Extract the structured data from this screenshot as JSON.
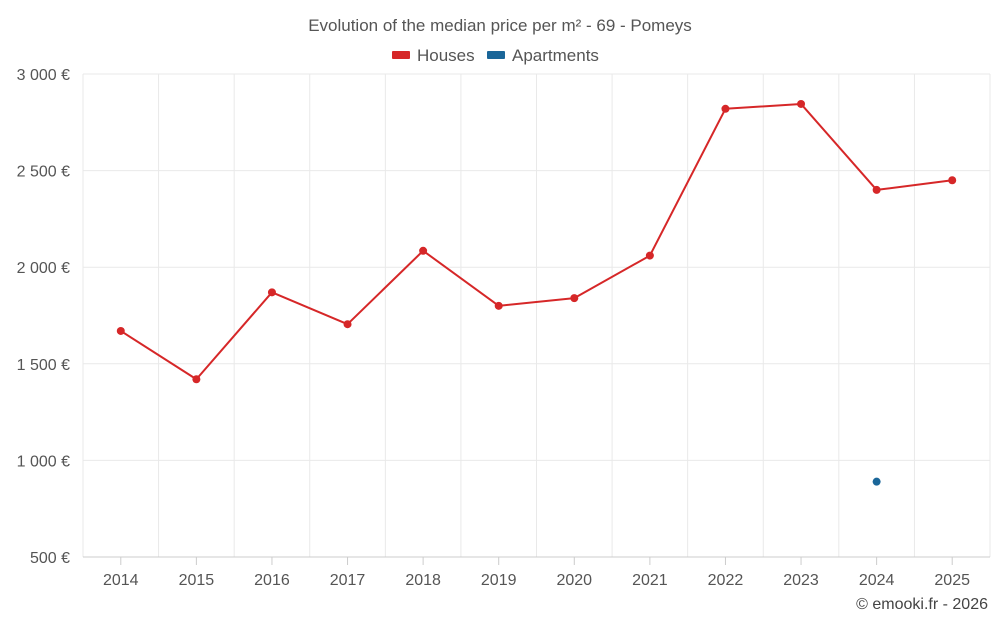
{
  "chart_data": {
    "type": "line",
    "title": "Evolution of the median price per m² - 69 - Pomeys",
    "xlabel": "",
    "ylabel": "",
    "categories": [
      "2014",
      "2015",
      "2016",
      "2017",
      "2018",
      "2019",
      "2020",
      "2021",
      "2022",
      "2023",
      "2024",
      "2025"
    ],
    "series": [
      {
        "name": "Houses",
        "color": "#d62728",
        "values": [
          1670,
          1420,
          1870,
          1705,
          2085,
          1800,
          1840,
          2060,
          2820,
          2845,
          2400,
          2450
        ]
      },
      {
        "name": "Apartments",
        "color": "#1a6699",
        "values": [
          null,
          null,
          null,
          null,
          null,
          null,
          null,
          null,
          null,
          null,
          890,
          null
        ]
      }
    ],
    "ylim": [
      500,
      3000
    ],
    "yticks": [
      500,
      1000,
      1500,
      2000,
      2500,
      3000
    ],
    "ytick_labels": [
      "500 €",
      "1 000 €",
      "1 500 €",
      "2 000 €",
      "2 500 €",
      "3 000 €"
    ],
    "grid": true,
    "legend_position": "top-center"
  },
  "credit": "© emooki.fr - 2026"
}
